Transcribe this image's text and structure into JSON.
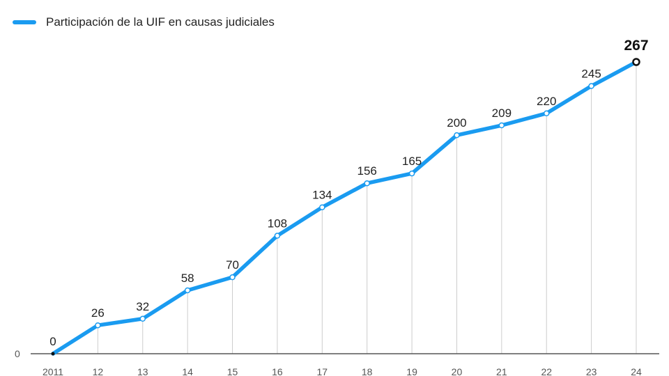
{
  "chart_data": {
    "type": "line",
    "title": "",
    "xlabel": "",
    "ylabel": "",
    "categories": [
      "2011",
      "12",
      "13",
      "14",
      "15",
      "16",
      "17",
      "18",
      "19",
      "20",
      "21",
      "22",
      "23",
      "24"
    ],
    "series": [
      {
        "name": "Participación de la UIF en causas judiciales",
        "values": [
          0,
          26,
          32,
          58,
          70,
          108,
          134,
          156,
          165,
          200,
          209,
          220,
          245,
          267
        ]
      }
    ],
    "ylim": [
      0,
      267
    ],
    "yticks": [
      "0"
    ],
    "legend": "top-left",
    "colors": {
      "line": "#1a9bf0",
      "grid": "#cccccc",
      "axis": "#555555"
    }
  }
}
